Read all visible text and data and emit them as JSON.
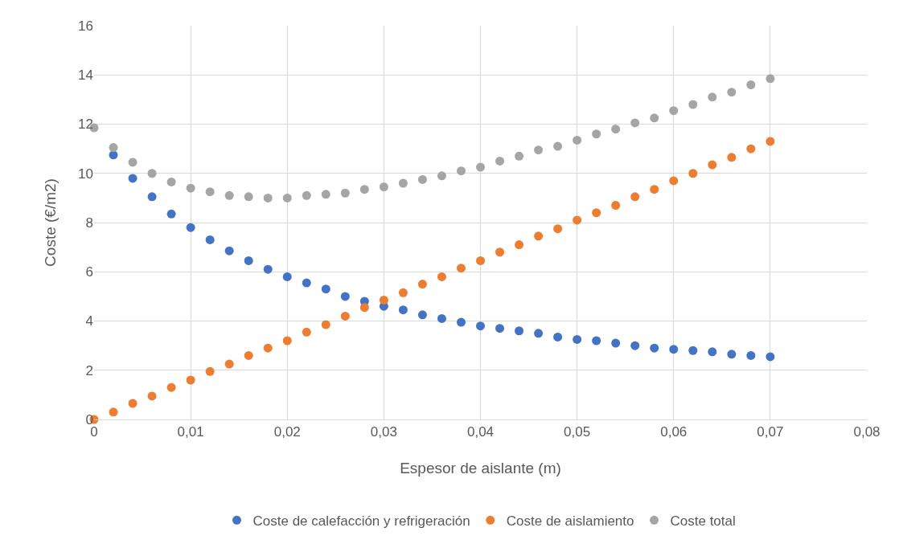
{
  "chart_data": {
    "type": "scatter",
    "xlabel": "Espesor de aislante (m)",
    "ylabel": "Coste (€/m2)",
    "x": [
      0,
      0.002,
      0.004,
      0.006,
      0.008,
      0.01,
      0.012,
      0.014,
      0.016,
      0.018,
      0.02,
      0.022,
      0.024,
      0.026,
      0.028,
      0.03,
      0.032,
      0.034,
      0.036,
      0.038,
      0.04,
      0.042,
      0.044,
      0.046,
      0.048,
      0.05,
      0.052,
      0.054,
      0.056,
      0.058,
      0.06,
      0.062,
      0.064,
      0.066,
      0.068,
      0.07
    ],
    "series": [
      {
        "name": "Coste de calefacción y refrigeración",
        "color": "#4472c4",
        "values": [
          null,
          10.75,
          9.8,
          9.05,
          8.35,
          7.8,
          7.3,
          6.85,
          6.45,
          6.1,
          5.8,
          5.55,
          5.3,
          5.0,
          4.8,
          4.6,
          4.45,
          4.25,
          4.1,
          3.95,
          3.8,
          3.7,
          3.6,
          3.5,
          3.35,
          3.25,
          3.2,
          3.1,
          3.0,
          2.9,
          2.85,
          2.8,
          2.75,
          2.65,
          2.6,
          2.55
        ]
      },
      {
        "name": "Coste de aislamiento",
        "color": "#ed7d31",
        "values": [
          0,
          0.3,
          0.65,
          0.95,
          1.3,
          1.6,
          1.95,
          2.25,
          2.6,
          2.9,
          3.2,
          3.55,
          3.85,
          4.2,
          4.55,
          4.85,
          5.15,
          5.5,
          5.8,
          6.15,
          6.45,
          6.8,
          7.1,
          7.45,
          7.75,
          8.1,
          8.4,
          8.7,
          9.05,
          9.35,
          9.7,
          10.0,
          10.35,
          10.65,
          11.0,
          11.3
        ]
      },
      {
        "name": "Coste total",
        "color": "#a5a5a5",
        "values": [
          11.85,
          11.05,
          10.45,
          10.0,
          9.65,
          9.4,
          9.25,
          9.1,
          9.05,
          9.0,
          9.0,
          9.1,
          9.15,
          9.2,
          9.35,
          9.45,
          9.6,
          9.75,
          9.9,
          10.1,
          10.25,
          10.5,
          10.7,
          10.95,
          11.1,
          11.35,
          11.6,
          11.8,
          12.05,
          12.25,
          12.55,
          12.8,
          13.1,
          13.3,
          13.6,
          13.85
        ]
      }
    ],
    "xlim": [
      0,
      0.08
    ],
    "xticks": [
      0,
      {
        "value": 0.01,
        "label": "0,01"
      },
      {
        "value": 0.02,
        "label": "0,02"
      },
      {
        "value": 0.03,
        "label": "0,03"
      },
      {
        "value": 0.04,
        "label": "0,04"
      },
      {
        "value": 0.05,
        "label": "0,05"
      },
      {
        "value": 0.06,
        "label": "0,06"
      },
      {
        "value": 0.07,
        "label": "0,07"
      },
      {
        "value": 0.08,
        "label": "0,08"
      }
    ],
    "ylim": [
      0,
      16
    ],
    "yticks": [
      0,
      2,
      4,
      6,
      8,
      10,
      12,
      14,
      16
    ],
    "grid": true,
    "legend": "bottom",
    "marker": "circle"
  }
}
